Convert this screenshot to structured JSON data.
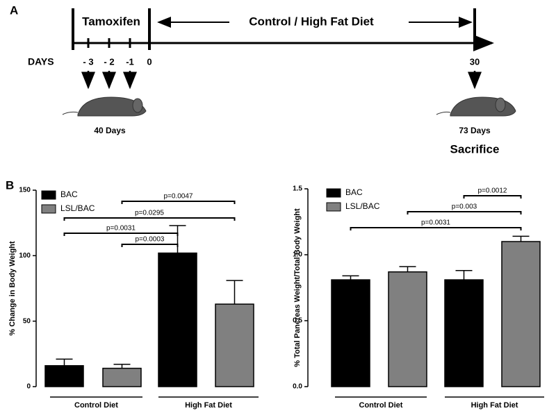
{
  "panel_a": {
    "label": "A",
    "phase1": "Tamoxifen",
    "phase2": "Control / High Fat Diet",
    "axis_label": "DAYS",
    "day_labels": [
      "- 3",
      "- 2",
      "-1",
      "0",
      "30"
    ],
    "start_age": "40 Days",
    "end_age": "73 Days",
    "end_event": "Sacrifice"
  },
  "panel_b": {
    "label": "B"
  },
  "chart_data": [
    {
      "type": "bar",
      "ylabel": "% Change in Body Weight",
      "categories": [
        "Control Diet",
        "High Fat Diet"
      ],
      "series": [
        {
          "name": "BAC",
          "color": "#000000",
          "values": [
            16,
            102
          ],
          "errors": [
            5,
            21
          ]
        },
        {
          "name": "LSL/BAC",
          "color": "#808080",
          "values": [
            14,
            63
          ],
          "errors": [
            3,
            18
          ]
        }
      ],
      "ylim": [
        0,
        150
      ],
      "yticks": [
        0,
        50,
        100,
        150
      ],
      "legend": "upper left",
      "annotations": [
        "p=0.0047",
        "p=0.0295",
        "p=0.0031",
        "p=0.0003"
      ]
    },
    {
      "type": "bar",
      "ylabel": "% Total Pancreas Weight/Total Body Weight",
      "categories": [
        "Control Diet",
        "High Fat Diet"
      ],
      "series": [
        {
          "name": "BAC",
          "color": "#000000",
          "values": [
            0.81,
            0.81
          ],
          "errors": [
            0.03,
            0.07
          ]
        },
        {
          "name": "LSL/BAC",
          "color": "#808080",
          "values": [
            0.87,
            1.1
          ],
          "errors": [
            0.04,
            0.04
          ]
        }
      ],
      "ylim": [
        0,
        1.5
      ],
      "yticks": [
        {
          "value": 0,
          "label": "0.0"
        },
        {
          "value": 0.5,
          "label": "0.5"
        },
        {
          "value": 1,
          "label": "1.0"
        },
        {
          "value": 1.5,
          "label": "1.5"
        }
      ],
      "legend": "upper left",
      "annotations": [
        "p=0.0012",
        "p=0.003",
        "p=0.0031"
      ]
    }
  ]
}
